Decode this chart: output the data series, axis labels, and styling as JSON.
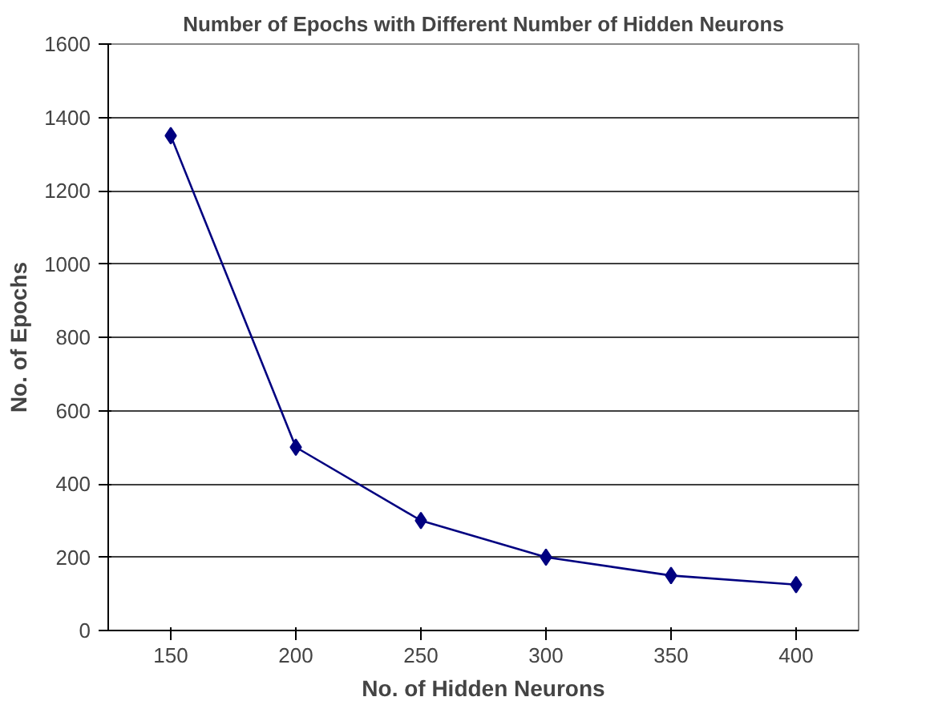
{
  "chart_data": {
    "type": "line",
    "title": "Number of Epochs with Different Number of Hidden Neurons",
    "xlabel": "No. of Hidden Neurons",
    "ylabel": "No. of Epochs",
    "categories": [
      "150",
      "200",
      "250",
      "300",
      "350",
      "400"
    ],
    "series": [
      {
        "color": "#000080",
        "values": [
          1350,
          500,
          300,
          200,
          150,
          125
        ]
      }
    ],
    "ylim": [
      0,
      1600
    ],
    "yticks": [
      0,
      200,
      400,
      600,
      800,
      1000,
      1200,
      1400,
      1600
    ],
    "grid": "y",
    "marker": "diamond",
    "line_style": "solid"
  }
}
